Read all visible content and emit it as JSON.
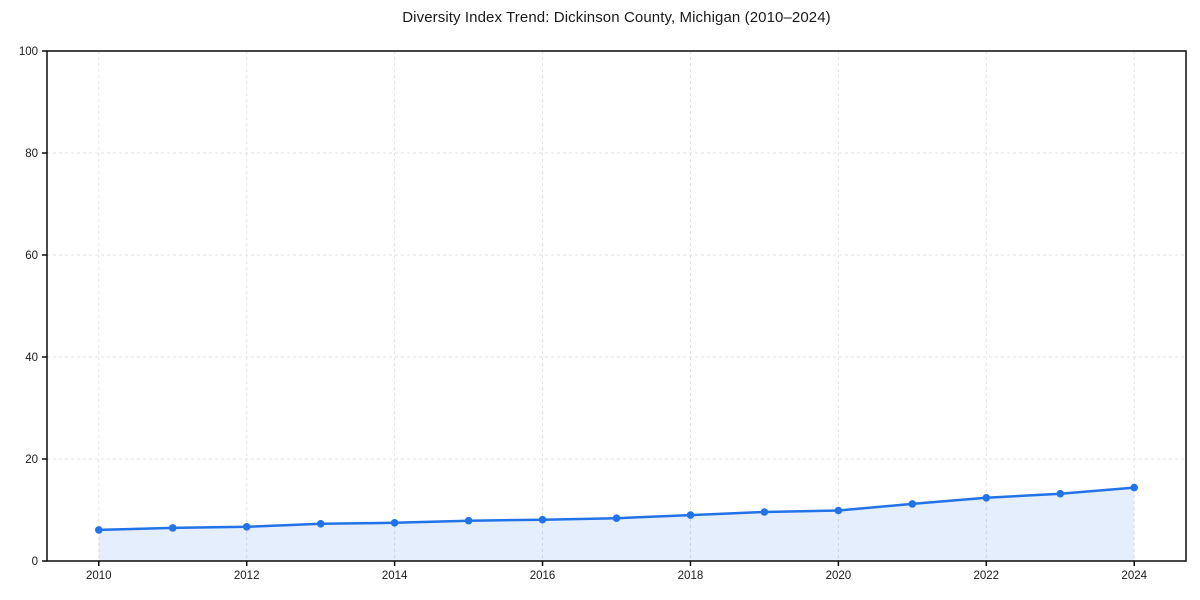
{
  "figure": {
    "background": "#ffffff"
  },
  "chart_data": {
    "type": "line",
    "title": "Diversity Index Trend: Dickinson County, Michigan (2010–2024)",
    "xlabel": "",
    "ylabel": "",
    "x": [
      2010,
      2011,
      2012,
      2013,
      2014,
      2015,
      2016,
      2017,
      2018,
      2019,
      2020,
      2021,
      2022,
      2023,
      2024
    ],
    "series": [
      {
        "name": "Diversity Index",
        "values": [
          6.1,
          6.5,
          6.7,
          7.3,
          7.5,
          7.9,
          8.1,
          8.4,
          9.0,
          9.6,
          9.9,
          11.2,
          12.4,
          13.2,
          14.4
        ]
      }
    ],
    "xticks": [
      2010,
      2012,
      2014,
      2016,
      2018,
      2020,
      2022,
      2024
    ],
    "yticks": [
      0,
      20,
      40,
      60,
      80,
      100
    ],
    "xlim": [
      2009.3,
      2024.7
    ],
    "ylim": [
      0,
      100
    ],
    "grid": true,
    "grid_style": "dashed",
    "legend_position": "none",
    "marker": "circle",
    "area_fill": true
  },
  "colors": {
    "line": "#2272e8",
    "marker": "#2272e8",
    "area_fill": "rgba(34,114,232,0.12)",
    "grid": "#e2e2e2",
    "spine": "#0a0a0a",
    "tick_label": "#1a1a1a",
    "title": "#1a1a1a",
    "background": "#ffffff"
  }
}
